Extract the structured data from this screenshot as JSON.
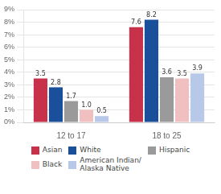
{
  "chart_data": {
    "type": "bar",
    "categories": [
      "12 to 17",
      "18 to 25"
    ],
    "series": [
      {
        "name": "Asian",
        "color": "#c8314a",
        "values": [
          3.5,
          7.6
        ]
      },
      {
        "name": "White",
        "color": "#1a4f9c",
        "values": [
          2.8,
          8.2
        ]
      },
      {
        "name": "Hispanic",
        "color": "#9a9a9a",
        "values": [
          1.7,
          3.6
        ]
      },
      {
        "name": "Black",
        "color": "#f0c0c0",
        "values": [
          1.0,
          3.5
        ],
        "value_labels": [
          "1.0",
          "3.5"
        ]
      },
      {
        "name": "American Indian/\nAlaska Native",
        "color": "#b8c8e8",
        "values": [
          0.5,
          3.9
        ]
      }
    ],
    "ylim": [
      0,
      9
    ],
    "yticks": [
      {
        "value": 0,
        "label": "0%"
      },
      {
        "value": 1,
        "label": "1%"
      },
      {
        "value": 2,
        "label": "2%"
      },
      {
        "value": 3,
        "label": "3%"
      },
      {
        "value": 4,
        "label": "4%"
      },
      {
        "value": 5,
        "label": "5%"
      },
      {
        "value": 6,
        "label": "6%"
      },
      {
        "value": 7,
        "label": "7%"
      },
      {
        "value": 8,
        "label": "8%"
      },
      {
        "value": 9,
        "label": "9%"
      }
    ],
    "grid": true,
    "legend": "bottom",
    "data_labels": true
  }
}
